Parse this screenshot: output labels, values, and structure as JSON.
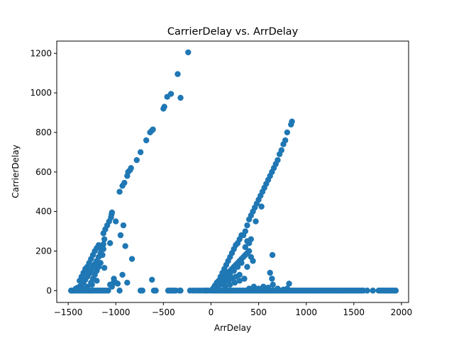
{
  "chart_data": {
    "type": "scatter",
    "title": "CarrierDelay vs. ArrDelay",
    "xlabel": "ArrDelay",
    "ylabel": "CarrierDelay",
    "xlim": [
      -1620,
      2075
    ],
    "ylim": [
      -60,
      1262
    ],
    "xticks": [
      -1500,
      -1000,
      -500,
      0,
      500,
      1000,
      1500,
      2000
    ],
    "yticks": [
      0,
      200,
      400,
      600,
      800,
      1000,
      1200
    ],
    "grid": false,
    "color": "#1f77b4",
    "series": [
      {
        "points": [
          [
            -1470,
            0
          ],
          [
            -1455,
            0
          ],
          [
            -1440,
            0
          ],
          [
            -1420,
            0
          ],
          [
            -1400,
            0
          ],
          [
            -1380,
            0
          ],
          [
            -1360,
            0
          ],
          [
            -1340,
            0
          ],
          [
            -1320,
            0
          ],
          [
            -1300,
            0
          ],
          [
            -1280,
            0
          ],
          [
            -1260,
            0
          ],
          [
            -1240,
            0
          ],
          [
            -1220,
            0
          ],
          [
            -1200,
            0
          ],
          [
            -1180,
            0
          ],
          [
            -1160,
            0
          ],
          [
            -1140,
            0
          ],
          [
            -1120,
            0
          ],
          [
            -1100,
            0
          ],
          [
            -1080,
            0
          ],
          [
            -1420,
            10
          ],
          [
            -1400,
            15
          ],
          [
            -1380,
            20
          ],
          [
            -1360,
            30
          ],
          [
            -1340,
            40
          ],
          [
            -1320,
            55
          ],
          [
            -1300,
            70
          ],
          [
            -1280,
            85
          ],
          [
            -1260,
            100
          ],
          [
            -1240,
            120
          ],
          [
            -1220,
            135
          ],
          [
            -1200,
            150
          ],
          [
            -1180,
            170
          ],
          [
            -1160,
            190
          ],
          [
            -1150,
            210
          ],
          [
            -1140,
            225
          ],
          [
            -1130,
            235
          ],
          [
            -1400,
            5
          ],
          [
            -1350,
            10
          ],
          [
            -1300,
            20
          ],
          [
            -1250,
            30
          ],
          [
            -1200,
            50
          ],
          [
            -1260,
            160
          ],
          [
            -1240,
            180
          ],
          [
            -1220,
            200
          ],
          [
            -1200,
            215
          ],
          [
            -1180,
            230
          ],
          [
            -1300,
            120
          ],
          [
            -1280,
            140
          ],
          [
            -1340,
            90
          ],
          [
            -1320,
            110
          ],
          [
            -1360,
            70
          ],
          [
            -1380,
            50
          ],
          [
            -1240,
            60
          ],
          [
            -1220,
            80
          ],
          [
            -1260,
            40
          ],
          [
            -1300,
            100
          ],
          [
            -1200,
            100
          ],
          [
            -1180,
            120
          ],
          [
            -1160,
            140
          ],
          [
            -1130,
            290
          ],
          [
            -1110,
            310
          ],
          [
            -1090,
            330
          ],
          [
            -1070,
            350
          ],
          [
            -1050,
            370
          ],
          [
            -1045,
            385
          ],
          [
            -1040,
            395
          ],
          [
            -1000,
            350
          ],
          [
            -1060,
            240
          ],
          [
            -1120,
            260
          ],
          [
            -1130,
            210
          ],
          [
            -1140,
            180
          ],
          [
            -1120,
            115
          ],
          [
            -1020,
            45
          ],
          [
            -1020,
            60
          ],
          [
            -1040,
            20
          ],
          [
            -1060,
            30
          ],
          [
            -1000,
            40
          ],
          [
            -980,
            35
          ],
          [
            -960,
            0
          ],
          [
            -950,
            280
          ],
          [
            -920,
            330
          ],
          [
            -900,
            225
          ],
          [
            -880,
            40
          ],
          [
            -930,
            80
          ],
          [
            -830,
            160
          ],
          [
            -740,
            0
          ],
          [
            -720,
            0
          ],
          [
            -620,
            55
          ],
          [
            -600,
            0
          ],
          [
            -580,
            0
          ],
          [
            -450,
            0
          ],
          [
            -430,
            0
          ],
          [
            -410,
            0
          ],
          [
            -390,
            0
          ],
          [
            -370,
            0
          ],
          [
            -330,
            0
          ],
          [
            -320,
            0
          ],
          [
            -960,
            500
          ],
          [
            -930,
            530
          ],
          [
            -910,
            545
          ],
          [
            -880,
            580
          ],
          [
            -870,
            600
          ],
          [
            -850,
            610
          ],
          [
            -840,
            620
          ],
          [
            -780,
            660
          ],
          [
            -740,
            700
          ],
          [
            -680,
            760
          ],
          [
            -640,
            800
          ],
          [
            -620,
            810
          ],
          [
            -610,
            815
          ],
          [
            -500,
            920
          ],
          [
            -490,
            930
          ],
          [
            -460,
            980
          ],
          [
            -420,
            995
          ],
          [
            -350,
            1095
          ],
          [
            -320,
            975
          ],
          [
            -240,
            1205
          ],
          [
            -220,
            0
          ],
          [
            -190,
            0
          ],
          [
            -160,
            0
          ],
          [
            -130,
            0
          ],
          [
            -100,
            0
          ],
          [
            -70,
            0
          ],
          [
            -50,
            0
          ],
          [
            -30,
            0
          ],
          [
            0,
            0
          ],
          [
            20,
            0
          ],
          [
            40,
            0
          ],
          [
            60,
            0
          ],
          [
            80,
            0
          ],
          [
            100,
            0
          ],
          [
            120,
            0
          ],
          [
            140,
            0
          ],
          [
            160,
            0
          ],
          [
            180,
            0
          ],
          [
            200,
            0
          ],
          [
            220,
            0
          ],
          [
            240,
            0
          ],
          [
            260,
            0
          ],
          [
            280,
            0
          ],
          [
            300,
            0
          ],
          [
            320,
            0
          ],
          [
            340,
            0
          ],
          [
            360,
            0
          ],
          [
            380,
            0
          ],
          [
            400,
            0
          ],
          [
            420,
            0
          ],
          [
            440,
            0
          ],
          [
            460,
            0
          ],
          [
            480,
            0
          ],
          [
            500,
            0
          ],
          [
            520,
            0
          ],
          [
            540,
            0
          ],
          [
            560,
            0
          ],
          [
            580,
            0
          ],
          [
            600,
            0
          ],
          [
            620,
            0
          ],
          [
            640,
            0
          ],
          [
            660,
            0
          ],
          [
            680,
            0
          ],
          [
            700,
            0
          ],
          [
            720,
            0
          ],
          [
            740,
            0
          ],
          [
            760,
            0
          ],
          [
            780,
            0
          ],
          [
            800,
            0
          ],
          [
            820,
            0
          ],
          [
            840,
            0
          ],
          [
            860,
            0
          ],
          [
            880,
            0
          ],
          [
            900,
            0
          ],
          [
            920,
            0
          ],
          [
            940,
            0
          ],
          [
            960,
            0
          ],
          [
            980,
            0
          ],
          [
            1000,
            0
          ],
          [
            1020,
            0
          ],
          [
            1040,
            0
          ],
          [
            1060,
            0
          ],
          [
            1080,
            0
          ],
          [
            1100,
            0
          ],
          [
            1120,
            0
          ],
          [
            1140,
            0
          ],
          [
            1160,
            0
          ],
          [
            1180,
            0
          ],
          [
            1200,
            0
          ],
          [
            1220,
            0
          ],
          [
            1240,
            0
          ],
          [
            1260,
            0
          ],
          [
            1280,
            0
          ],
          [
            1300,
            0
          ],
          [
            1320,
            0
          ],
          [
            1340,
            0
          ],
          [
            1360,
            0
          ],
          [
            1380,
            0
          ],
          [
            1400,
            0
          ],
          [
            1420,
            0
          ],
          [
            1440,
            0
          ],
          [
            1460,
            0
          ],
          [
            1480,
            0
          ],
          [
            1500,
            0
          ],
          [
            1520,
            0
          ],
          [
            1540,
            0
          ],
          [
            1560,
            0
          ],
          [
            1580,
            0
          ],
          [
            1600,
            0
          ],
          [
            1640,
            0
          ],
          [
            1700,
            0
          ],
          [
            1760,
            0
          ],
          [
            1780,
            0
          ],
          [
            1800,
            0
          ],
          [
            1820,
            0
          ],
          [
            1840,
            0
          ],
          [
            1860,
            0
          ],
          [
            1880,
            0
          ],
          [
            1900,
            0
          ],
          [
            1920,
            0
          ],
          [
            1940,
            0
          ],
          [
            20,
            10
          ],
          [
            40,
            20
          ],
          [
            60,
            30
          ],
          [
            80,
            40
          ],
          [
            100,
            50
          ],
          [
            120,
            60
          ],
          [
            140,
            70
          ],
          [
            160,
            80
          ],
          [
            180,
            90
          ],
          [
            200,
            100
          ],
          [
            220,
            110
          ],
          [
            240,
            120
          ],
          [
            260,
            130
          ],
          [
            280,
            140
          ],
          [
            300,
            150
          ],
          [
            320,
            160
          ],
          [
            340,
            170
          ],
          [
            360,
            180
          ],
          [
            380,
            190
          ],
          [
            400,
            200
          ],
          [
            60,
            20
          ],
          [
            100,
            30
          ],
          [
            140,
            40
          ],
          [
            180,
            50
          ],
          [
            220,
            60
          ],
          [
            260,
            70
          ],
          [
            300,
            80
          ],
          [
            120,
            40
          ],
          [
            160,
            60
          ],
          [
            200,
            80
          ],
          [
            240,
            100
          ],
          [
            280,
            120
          ],
          [
            320,
            140
          ],
          [
            150,
            20
          ],
          [
            200,
            30
          ],
          [
            250,
            40
          ],
          [
            300,
            50
          ],
          [
            350,
            60
          ],
          [
            400,
            10
          ],
          [
            450,
            20
          ],
          [
            500,
            10
          ],
          [
            550,
            20
          ],
          [
            600,
            15
          ],
          [
            650,
            30
          ],
          [
            700,
            10
          ],
          [
            760,
            5
          ],
          [
            800,
            10
          ],
          [
            820,
            35
          ],
          [
            620,
            90
          ],
          [
            640,
            60
          ],
          [
            645,
            180
          ],
          [
            470,
            350
          ],
          [
            360,
            220
          ],
          [
            380,
            250
          ],
          [
            400,
            240
          ],
          [
            420,
            260
          ],
          [
            340,
            280
          ],
          [
            360,
            300
          ],
          [
            380,
            330
          ],
          [
            400,
            360
          ],
          [
            420,
            380
          ],
          [
            440,
            400
          ],
          [
            460,
            420
          ],
          [
            480,
            440
          ],
          [
            500,
            460
          ],
          [
            520,
            480
          ],
          [
            540,
            500
          ],
          [
            560,
            520
          ],
          [
            580,
            540
          ],
          [
            600,
            560
          ],
          [
            620,
            580
          ],
          [
            640,
            600
          ],
          [
            660,
            620
          ],
          [
            680,
            640
          ],
          [
            700,
            660
          ],
          [
            720,
            690
          ],
          [
            740,
            710
          ],
          [
            760,
            740
          ],
          [
            780,
            760
          ],
          [
            800,
            800
          ],
          [
            840,
            840
          ],
          [
            850,
            855
          ],
          [
            530,
            425
          ],
          [
            420,
            170
          ],
          [
            440,
            150
          ],
          [
            380,
            120
          ],
          [
            260,
            230
          ],
          [
            300,
            260
          ],
          [
            320,
            280
          ],
          [
            280,
            240
          ],
          [
            240,
            210
          ],
          [
            220,
            190
          ],
          [
            200,
            170
          ],
          [
            180,
            150
          ],
          [
            160,
            130
          ],
          [
            140,
            110
          ],
          [
            120,
            90
          ],
          [
            100,
            70
          ],
          [
            80,
            50
          ],
          [
            60,
            40
          ],
          [
            40,
            25
          ],
          [
            30,
            15
          ]
        ]
      }
    ]
  }
}
